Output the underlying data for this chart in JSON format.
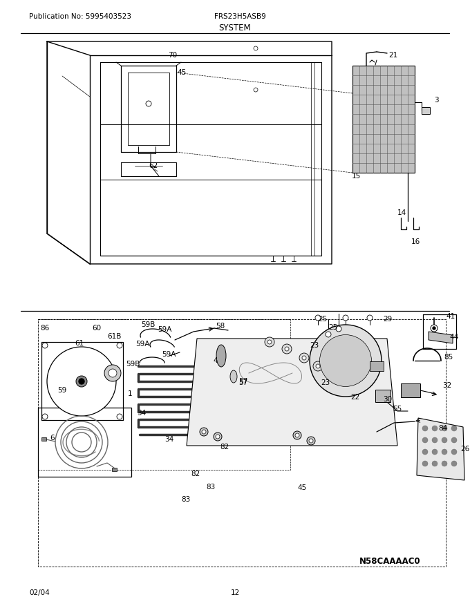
{
  "title": "SYSTEM",
  "publication": "Publication No: 5995403523",
  "model": "FRS23H5ASB9",
  "date": "02/04",
  "page": "12",
  "diagram_code": "N58CAAAAC0",
  "bg_color": "#ffffff",
  "line_color": "#000000",
  "figsize": [
    6.8,
    8.8
  ],
  "dpi": 100
}
